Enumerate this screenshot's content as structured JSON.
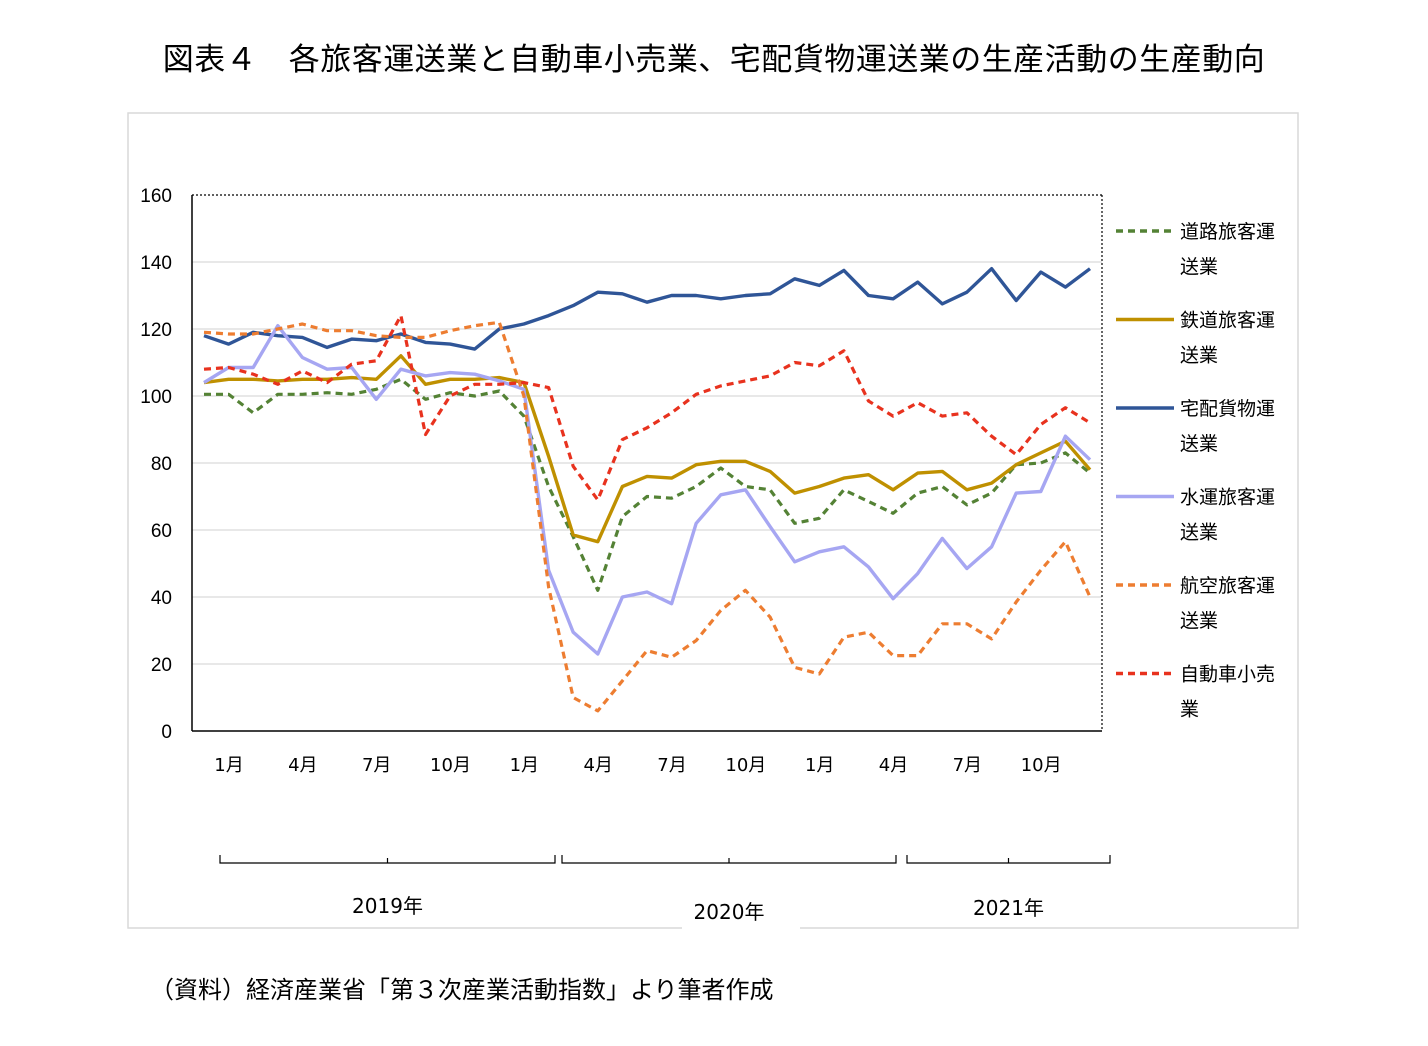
{
  "title": "図表４　各旅客運送業と自動車小売業、宅配貨物運送業の生産活動の生産動向",
  "source": "（資料）経済産業省「第３次産業活動指数」より筆者作成",
  "chart_data": {
    "type": "line",
    "title": "図表４　各旅客運送業と自動車小売業、宅配貨物運送業の生産活動の生産動向",
    "ylim": [
      0,
      160
    ],
    "yticks": [
      0,
      20,
      40,
      60,
      80,
      100,
      120,
      140,
      160
    ],
    "x_tick_labels": [
      "1月",
      "4月",
      "7月",
      "10月",
      "1月",
      "4月",
      "7月",
      "10月",
      "1月",
      "4月",
      "7月",
      "10月"
    ],
    "x_tick_index": [
      0,
      3,
      6,
      9,
      12,
      15,
      18,
      21,
      24,
      27,
      30,
      33
    ],
    "year_labels": [
      "2019年",
      "2020年",
      "2021年"
    ],
    "year_groups": [
      [
        0,
        13
      ],
      [
        14,
        27
      ],
      [
        28,
        36
      ]
    ],
    "legend_position": "right",
    "series": [
      {
        "name": "道路旅客運送業",
        "label_lines": [
          "道路旅客運",
          "送業"
        ],
        "color": "#548235",
        "dash": true,
        "values": [
          100.5,
          100.5,
          95,
          100.5,
          100.5,
          101,
          100.5,
          102,
          105,
          99,
          101,
          100,
          101.5,
          94,
          73,
          58,
          42,
          64,
          70,
          69.5,
          73,
          78.5,
          73,
          72,
          62,
          63.5,
          72,
          68.5,
          65,
          71,
          73,
          67.5,
          71,
          79.5,
          80,
          83,
          77
        ]
      },
      {
        "name": "鉄道旅客運送業",
        "label_lines": [
          "鉄道旅客運",
          "送業"
        ],
        "color": "#BF9000",
        "dash": false,
        "values": [
          104,
          105,
          105,
          104.5,
          105,
          105,
          105.5,
          105,
          112,
          103.5,
          105,
          105,
          105.5,
          104,
          82,
          58.5,
          56.5,
          73,
          76,
          75.5,
          79.5,
          80.5,
          80.5,
          77.5,
          71,
          73,
          75.5,
          76.5,
          72,
          77,
          77.5,
          72,
          74,
          79.5,
          83,
          86.5,
          78
        ]
      },
      {
        "name": "宅配貨物運送業",
        "label_lines": [
          "宅配貨物運",
          "送業"
        ],
        "color": "#2F5597",
        "dash": false,
        "values": [
          118,
          115.5,
          119,
          118,
          117.5,
          114.5,
          117,
          116.5,
          118.5,
          116,
          115.5,
          114,
          120,
          121.5,
          124,
          127,
          131,
          130.5,
          128,
          130,
          130,
          129,
          130,
          130.5,
          135,
          133,
          137.5,
          130,
          129,
          134,
          127.5,
          131,
          138,
          128.5,
          137,
          132.5,
          138
        ]
      },
      {
        "name": "水運旅客運送業",
        "label_lines": [
          "水運旅客運",
          "送業"
        ],
        "color": "#A6A6F2",
        "dash": false,
        "values": [
          104,
          108.5,
          108.5,
          121,
          111.5,
          108,
          108.5,
          99,
          108,
          106,
          107,
          106.5,
          104.5,
          102,
          48,
          29.5,
          23,
          40,
          41.5,
          38,
          62,
          70.5,
          72,
          61,
          50.5,
          53.5,
          55,
          49,
          39.5,
          47,
          57.5,
          48.5,
          55,
          71,
          71.5,
          88,
          81
        ]
      },
      {
        "name": "航空旅客運送業",
        "label_lines": [
          "航空旅客運",
          "送業"
        ],
        "color": "#ED7D31",
        "dash": true,
        "values": [
          119,
          118.5,
          118.5,
          120,
          121.5,
          119.5,
          119.5,
          118,
          117.5,
          117.5,
          119.5,
          121,
          122,
          100,
          43,
          10,
          6,
          15,
          24,
          22,
          27,
          36,
          42,
          34,
          19,
          17,
          28,
          29.5,
          22.5,
          22.5,
          32,
          32,
          27.5,
          38.5,
          48,
          56.5,
          40
        ]
      },
      {
        "name": "自動車小売業",
        "label_lines": [
          "自動車小売",
          "業"
        ],
        "color": "#E8321E",
        "dash": true,
        "values": [
          108,
          108.5,
          106.5,
          103.5,
          107.5,
          104,
          109.5,
          110.5,
          124,
          88.5,
          100,
          103.5,
          103.5,
          104,
          102.5,
          79,
          69,
          87,
          90.5,
          95,
          100.5,
          103,
          104.5,
          106,
          110,
          109,
          113.5,
          98.5,
          94,
          98,
          94,
          95,
          88,
          82.5,
          91.5,
          96.5,
          92
        ]
      }
    ]
  }
}
